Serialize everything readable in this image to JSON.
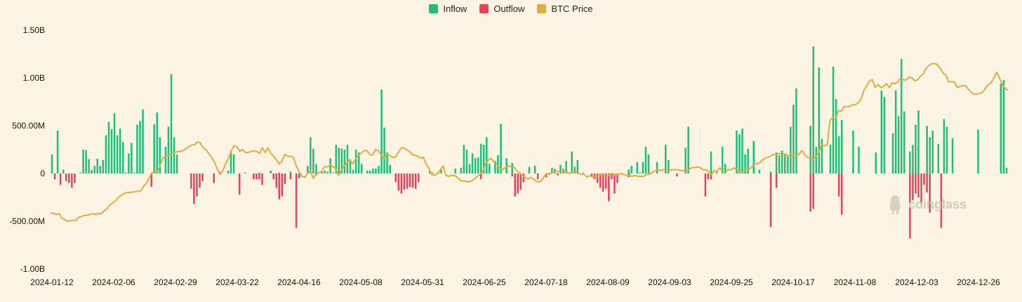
{
  "legend": {
    "inflow": "Inflow",
    "outflow": "Outflow",
    "btc_price": "BTC Price"
  },
  "watermark": "coinglass",
  "colors": {
    "inflow": "#1dbf7a",
    "outflow": "#e8425a",
    "btc_price": "#dcae3c",
    "background": "#fbf3e4"
  },
  "chart_data": {
    "type": "bar",
    "title": "",
    "xlabel": "",
    "ylabel": "",
    "ylim": [
      -1000000000,
      1500000000
    ],
    "y_ticks": [
      {
        "value": 1500000000,
        "label": "1.50B"
      },
      {
        "value": 1000000000,
        "label": "1.00B"
      },
      {
        "value": 500000000,
        "label": "500.00M"
      },
      {
        "value": 0,
        "label": "0"
      },
      {
        "value": -500000000,
        "label": "-500.00M"
      },
      {
        "value": -1000000000,
        "label": "-1.00B"
      }
    ],
    "x_tick_labels": [
      "2024-01-12",
      "2024-02-06",
      "2024-02-29",
      "2024-03-22",
      "2024-04-16",
      "2024-05-08",
      "2024-05-31",
      "2024-06-25",
      "2024-07-18",
      "2024-08-09",
      "2024-09-03",
      "2024-09-25",
      "2024-10-17",
      "2024-11-08",
      "2024-12-03",
      "2024-12-26"
    ],
    "grid": false,
    "legend_position": "top-center",
    "series": [
      {
        "name": "Inflow",
        "values": [
          200,
          0,
          450,
          0,
          40,
          0,
          0,
          0,
          0,
          0,
          10,
          250,
          245,
          150,
          40,
          80,
          155,
          80,
          140,
          400,
          540,
          465,
          630,
          400,
          470,
          330,
          10,
          210,
          320,
          10,
          510,
          550,
          670,
          0,
          0,
          0,
          515,
          640,
          380,
          0,
          280,
          490,
          1040,
          380,
          200,
          0,
          0,
          0,
          0,
          0,
          0,
          0,
          0,
          0,
          0,
          0,
          0,
          0,
          0,
          20,
          0,
          0,
          30,
          220,
          200,
          0,
          0,
          0,
          10,
          0,
          0,
          0,
          0,
          10,
          0,
          0,
          0,
          30,
          0,
          0,
          10,
          0,
          0,
          0,
          20,
          0,
          0,
          0,
          0,
          0,
          80,
          380,
          260,
          100,
          0,
          20,
          30,
          20,
          160,
          10,
          300,
          270,
          260,
          250,
          300,
          150,
          40,
          250,
          220,
          100,
          0,
          30,
          30,
          50,
          50,
          80,
          880,
          480,
          220,
          90,
          0,
          0,
          0,
          0,
          0,
          0,
          0,
          0,
          0,
          0,
          0,
          0,
          0,
          30,
          10,
          0,
          10,
          40,
          0,
          0,
          0,
          0,
          50,
          0,
          60,
          300,
          250,
          100,
          210,
          160,
          170,
          310,
          300,
          380,
          100,
          0,
          130,
          190,
          520,
          0,
          160,
          0,
          110,
          0,
          0,
          0,
          0,
          0,
          70,
          0,
          80,
          0,
          0,
          0,
          0,
          0,
          60,
          50,
          0,
          90,
          50,
          130,
          0,
          230,
          70,
          140,
          0,
          10,
          0,
          0,
          0,
          0,
          0,
          0,
          0,
          0,
          0,
          0,
          0,
          0,
          0,
          0,
          0,
          40,
          80,
          0,
          120,
          10,
          120,
          280,
          200,
          0,
          0,
          120,
          0,
          0,
          300,
          140,
          0,
          0,
          0,
          0,
          0,
          270,
          490,
          0,
          0,
          0,
          0,
          0,
          0,
          0,
          230,
          0,
          20,
          0,
          280,
          100,
          0,
          0,
          0,
          450,
          410,
          470,
          200,
          260,
          0,
          340,
          0,
          40,
          0,
          0,
          0,
          20,
          0,
          220,
          190,
          240,
          210,
          180,
          490,
          720,
          890,
          0,
          0,
          0,
          0,
          500,
          1330,
          280,
          1110,
          360,
          0,
          0,
          300,
          1120,
          780,
          390,
          560,
          0,
          0,
          0,
          450,
          0,
          280,
          0,
          0,
          0,
          0,
          0,
          220,
          0,
          870,
          800,
          0,
          0,
          420,
          870,
          600,
          1200,
          650,
          0,
          230,
          300,
          510,
          660,
          0,
          0,
          500,
          380,
          450,
          0,
          310,
          0,
          570,
          490,
          0,
          370,
          0,
          0,
          0,
          0,
          0,
          0,
          0,
          0,
          460,
          0,
          0,
          0,
          0,
          0,
          0,
          0,
          940,
          980,
          60
        ]
      },
      {
        "name": "Outflow",
        "values": [
          0,
          -60,
          0,
          -120,
          0,
          -80,
          -100,
          -150,
          -100,
          0,
          0,
          0,
          0,
          0,
          0,
          0,
          0,
          0,
          0,
          0,
          0,
          0,
          0,
          0,
          0,
          0,
          0,
          0,
          0,
          0,
          0,
          0,
          0,
          0,
          0,
          -140,
          0,
          0,
          0,
          0,
          0,
          0,
          0,
          0,
          0,
          0,
          0,
          0,
          0,
          -160,
          -320,
          -240,
          -150,
          -80,
          0,
          0,
          0,
          -100,
          0,
          0,
          0,
          0,
          0,
          0,
          0,
          0,
          -220,
          0,
          0,
          0,
          0,
          -60,
          -60,
          -60,
          -120,
          0,
          0,
          0,
          -60,
          -150,
          -270,
          -240,
          -110,
          0,
          -60,
          0,
          -570,
          -50,
          0,
          0,
          0,
          0,
          0,
          -20,
          0,
          0,
          0,
          0,
          0,
          0,
          0,
          0,
          0,
          0,
          0,
          0,
          0,
          0,
          0,
          0,
          0,
          0,
          0,
          0,
          0,
          0,
          0,
          0,
          0,
          0,
          0,
          -90,
          -180,
          -210,
          -170,
          -160,
          -140,
          -150,
          -160,
          -90,
          0,
          0,
          0,
          0,
          0,
          0,
          0,
          0,
          0,
          0,
          0,
          0,
          0,
          0,
          0,
          0,
          0,
          0,
          0,
          0,
          0,
          -60,
          0,
          0,
          0,
          0,
          0,
          0,
          0,
          0,
          0,
          0,
          -30,
          -240,
          -210,
          -170,
          -90,
          0,
          0,
          0,
          0,
          -60,
          0,
          0,
          -40,
          -10,
          0,
          0,
          -20,
          0,
          0,
          0,
          0,
          0,
          0,
          0,
          0,
          0,
          0,
          0,
          -30,
          -60,
          -100,
          -150,
          -190,
          -160,
          -290,
          -60,
          -210,
          -100,
          0,
          0,
          0,
          -40,
          0,
          0,
          0,
          0,
          0,
          0,
          0,
          0,
          0,
          0,
          0,
          0,
          0,
          0,
          0,
          0,
          -30,
          0,
          0,
          0,
          0,
          0,
          0,
          0,
          0,
          0,
          -240,
          -60,
          -60,
          0,
          0,
          0,
          0,
          0,
          0,
          0,
          0,
          0,
          0,
          0,
          0,
          0,
          0,
          0,
          0,
          0,
          0,
          0,
          0,
          -560,
          0,
          -150,
          0,
          0,
          0,
          0,
          0,
          0,
          0,
          0,
          0,
          0,
          0,
          -400,
          -370,
          0,
          0,
          0,
          0,
          0,
          0,
          0,
          0,
          -240,
          -430,
          0,
          0,
          0,
          0,
          0,
          0,
          0,
          0,
          0,
          0,
          0,
          0,
          0,
          0,
          0,
          0,
          0,
          0,
          0,
          0,
          0,
          0,
          0,
          -680,
          -280,
          -210,
          -250,
          -330,
          -120,
          -200,
          -410,
          0,
          0,
          0,
          -570
        ]
      },
      {
        "name": "BTC Price",
        "values": [
          -418,
          -415,
          -430,
          -420,
          -470,
          -480,
          -500,
          -495,
          -490,
          -490,
          -460,
          -450,
          -440,
          -435,
          -430,
          -420,
          -430,
          -420,
          -420,
          -390,
          -370,
          -330,
          -310,
          -290,
          -250,
          -230,
          -210,
          -200,
          -200,
          -195,
          -190,
          -185,
          -180,
          -130,
          -100,
          -40,
          10,
          10,
          30,
          100,
          170,
          180,
          190,
          210,
          220,
          230,
          230,
          240,
          260,
          280,
          300,
          300,
          330,
          320,
          270,
          250,
          210,
          170,
          120,
          50,
          -10,
          30,
          100,
          160,
          240,
          290,
          280,
          230,
          250,
          220,
          220,
          230,
          240,
          230,
          210,
          270,
          220,
          270,
          210,
          180,
          140,
          100,
          130,
          200,
          180,
          180,
          170,
          80,
          20,
          -30,
          -40,
          0,
          30,
          -50,
          -10,
          10,
          20,
          70,
          70,
          90,
          70,
          50,
          -20,
          40,
          80,
          120,
          140,
          100,
          150,
          190,
          210,
          240,
          240,
          200,
          190,
          250,
          240,
          200,
          150,
          200,
          190,
          170,
          170,
          210,
          260,
          270,
          250,
          230,
          200,
          190,
          180,
          160,
          170,
          100,
          50,
          -10,
          -20,
          0,
          40,
          80,
          -20,
          -30,
          -20,
          -20,
          -40,
          -70,
          -80,
          -80,
          -90,
          -80,
          -60,
          -30,
          -10,
          20,
          100,
          140,
          160,
          120,
          100,
          60,
          40,
          60,
          80,
          70,
          70,
          30,
          10,
          -20,
          -40,
          -60,
          -40,
          -60,
          -80,
          -90,
          -70,
          -20,
          0,
          0,
          10,
          20,
          20,
          30,
          20,
          10,
          0,
          20,
          10,
          0,
          -10,
          -10,
          -40,
          -20,
          -40,
          -30,
          -20,
          -10,
          -20,
          -30,
          -10,
          0,
          -20,
          -10,
          0,
          -10,
          -20,
          -20,
          -30,
          -20,
          -30,
          -30,
          -30,
          -10,
          -10,
          10,
          30,
          40,
          30,
          40,
          40,
          30,
          40,
          40,
          40,
          30,
          30,
          20,
          40,
          60,
          60,
          70,
          60,
          40,
          40,
          20,
          -10,
          30,
          20,
          60,
          20,
          20,
          40,
          40,
          60,
          40,
          20,
          20,
          40,
          40,
          60,
          90,
          100,
          110,
          140,
          160,
          170,
          180,
          200,
          200,
          210,
          200,
          200,
          190,
          180,
          190,
          200,
          200,
          240,
          200,
          170,
          160,
          150,
          180,
          220,
          300,
          290,
          300,
          560,
          580,
          570,
          660,
          650,
          700,
          700,
          700,
          720,
          720,
          740,
          780,
          870,
          920,
          970,
          980,
          900,
          930,
          900,
          910,
          940,
          900,
          950,
          940,
          960,
          1000,
          980,
          980,
          1010,
          1000,
          970,
          980,
          1020,
          1040,
          1100,
          1130,
          1150,
          1150,
          1140,
          1100,
          1050,
          1030,
          960,
          960,
          960,
          900,
          910,
          920,
          920,
          880,
          850,
          830,
          830,
          840,
          850,
          890,
          930,
          950,
          1000,
          1060,
          1000,
          930,
          890,
          870
        ]
      }
    ],
    "value_unit_note_in_millions": true
  }
}
